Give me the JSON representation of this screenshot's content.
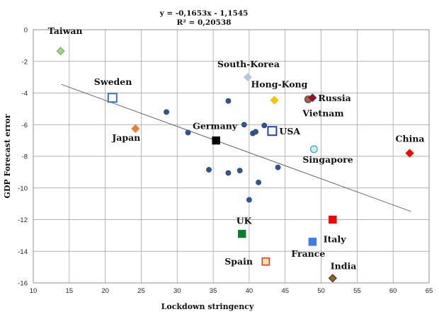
{
  "chart_data": {
    "type": "scatter",
    "title": "",
    "xlabel": "Lockdown stringency",
    "ylabel": "GDP Forecast error",
    "xlim": [
      10,
      65
    ],
    "ylim": [
      -16,
      0
    ],
    "xticks": [
      10,
      15,
      20,
      25,
      30,
      35,
      40,
      45,
      50,
      55,
      60,
      65
    ],
    "yticks": [
      0,
      -2,
      -4,
      -6,
      -8,
      -10,
      -12,
      -14,
      -16
    ],
    "grid": true,
    "legend": "none",
    "trendline": {
      "equation": "y = -0,1653x - 1,1545",
      "r_squared": "R² = 0,20538",
      "slope": -0.1653,
      "intercept": -1.1545,
      "x_range": [
        13.9,
        62.5
      ]
    },
    "labeled_points": [
      {
        "label": "Taiwan",
        "x": 13.8,
        "y": -1.35,
        "marker": "diamond",
        "fill": "#a8d08d",
        "stroke": "#7ba862"
      },
      {
        "label": "Sweden",
        "x": 21.0,
        "y": -4.3,
        "marker": "square-open",
        "fill": "#ffffff",
        "stroke": "#3a6fd0"
      },
      {
        "label": "Japan",
        "x": 24.2,
        "y": -6.25,
        "marker": "diamond",
        "fill": "#ed7d31",
        "stroke": "#ed7d31"
      },
      {
        "label": "South-Korea",
        "x": 39.8,
        "y": -3.0,
        "marker": "diamond",
        "fill": "#b4c7e7",
        "stroke": "#b4c7e7"
      },
      {
        "label": "Hong-Kong",
        "x": 43.5,
        "y": -4.45,
        "marker": "diamond",
        "fill": "#ffc000",
        "stroke": "#ffc000"
      },
      {
        "label": "Vietnam",
        "x": 48.2,
        "y": -4.4,
        "marker": "circle",
        "fill": "#c55a11",
        "stroke": "#2f5597"
      },
      {
        "label": "Russia",
        "x": 48.8,
        "y": -4.3,
        "marker": "diamond",
        "fill": "#c00000",
        "stroke": "#2f2f9f"
      },
      {
        "label": "Germany",
        "x": 35.4,
        "y": -7.0,
        "marker": "square",
        "fill": "#000000",
        "stroke": "#000000"
      },
      {
        "label": "USA",
        "x": 43.2,
        "y": -6.4,
        "marker": "square-open",
        "fill": "#ffffff",
        "stroke": "#1f3fbf"
      },
      {
        "label": "Singapore",
        "x": 49.0,
        "y": -7.55,
        "marker": "circle",
        "fill": "#c6efef",
        "stroke": "#26b0a6"
      },
      {
        "label": "China",
        "x": 62.3,
        "y": -7.8,
        "marker": "diamond",
        "fill": "#ff0000",
        "stroke": "#ff0000"
      },
      {
        "label": "Italy",
        "x": 51.6,
        "y": -12.0,
        "marker": "square",
        "fill": "#ff0000",
        "stroke": "#ff0000"
      },
      {
        "label": "UK",
        "x": 39.0,
        "y": -12.9,
        "marker": "square",
        "fill": "#00802b",
        "stroke": "#00802b"
      },
      {
        "label": "France",
        "x": 48.8,
        "y": -13.4,
        "marker": "square",
        "fill": "#3d7be8",
        "stroke": "#3d7be8"
      },
      {
        "label": "Spain",
        "x": 42.3,
        "y": -14.65,
        "marker": "square",
        "fill": "#ffe699",
        "stroke": "#d72f2f"
      },
      {
        "label": "India",
        "x": 51.6,
        "y": -15.7,
        "marker": "diamond",
        "fill": "#548235",
        "stroke": "#c00000"
      }
    ],
    "unlabeled_points": [
      {
        "x": 28.5,
        "y": -5.2
      },
      {
        "x": 31.5,
        "y": -6.5
      },
      {
        "x": 34.4,
        "y": -8.85
      },
      {
        "x": 37.1,
        "y": -4.5
      },
      {
        "x": 37.1,
        "y": -9.05
      },
      {
        "x": 38.7,
        "y": -8.9
      },
      {
        "x": 39.3,
        "y": -6.0
      },
      {
        "x": 40.0,
        "y": -10.75
      },
      {
        "x": 40.5,
        "y": -6.55
      },
      {
        "x": 40.9,
        "y": -6.45
      },
      {
        "x": 41.3,
        "y": -9.65
      },
      {
        "x": 42.1,
        "y": -6.05
      },
      {
        "x": 44.0,
        "y": -8.7
      }
    ]
  }
}
